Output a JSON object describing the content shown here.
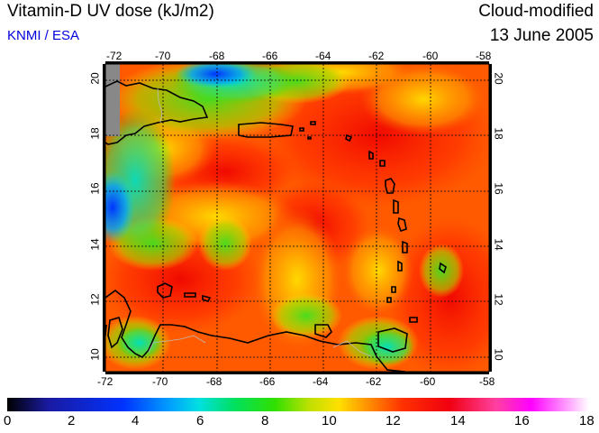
{
  "header": {
    "title": "Vitamin-D UV dose (kJ/m2)",
    "credit": "KNMI / ESA",
    "mode": "Cloud-modified",
    "date": "13 June 2005"
  },
  "map": {
    "lon_ticks": [
      "-72",
      "-70",
      "-68",
      "-66",
      "-64",
      "-62",
      "-60",
      "-58"
    ],
    "lat_ticks": [
      "10",
      "12",
      "14",
      "16",
      "18",
      "20"
    ],
    "lon_range": [
      -72,
      -58
    ],
    "lat_range": [
      9.5,
      20.5
    ],
    "grid": true,
    "color_scale_colors": [
      "#000000",
      "#1a1aa0",
      "#0033ff",
      "#00a0ff",
      "#00e0e0",
      "#00e060",
      "#30e000",
      "#c0e000",
      "#ffe000",
      "#ff9000",
      "#ff3000",
      "#f00010",
      "#ff40a0",
      "#ff00ff",
      "#ffffff"
    ]
  },
  "colorbar": {
    "ticks": [
      "0",
      "2",
      "4",
      "6",
      "8",
      "10",
      "12",
      "14",
      "16",
      "18"
    ],
    "range": [
      0,
      18
    ]
  }
}
